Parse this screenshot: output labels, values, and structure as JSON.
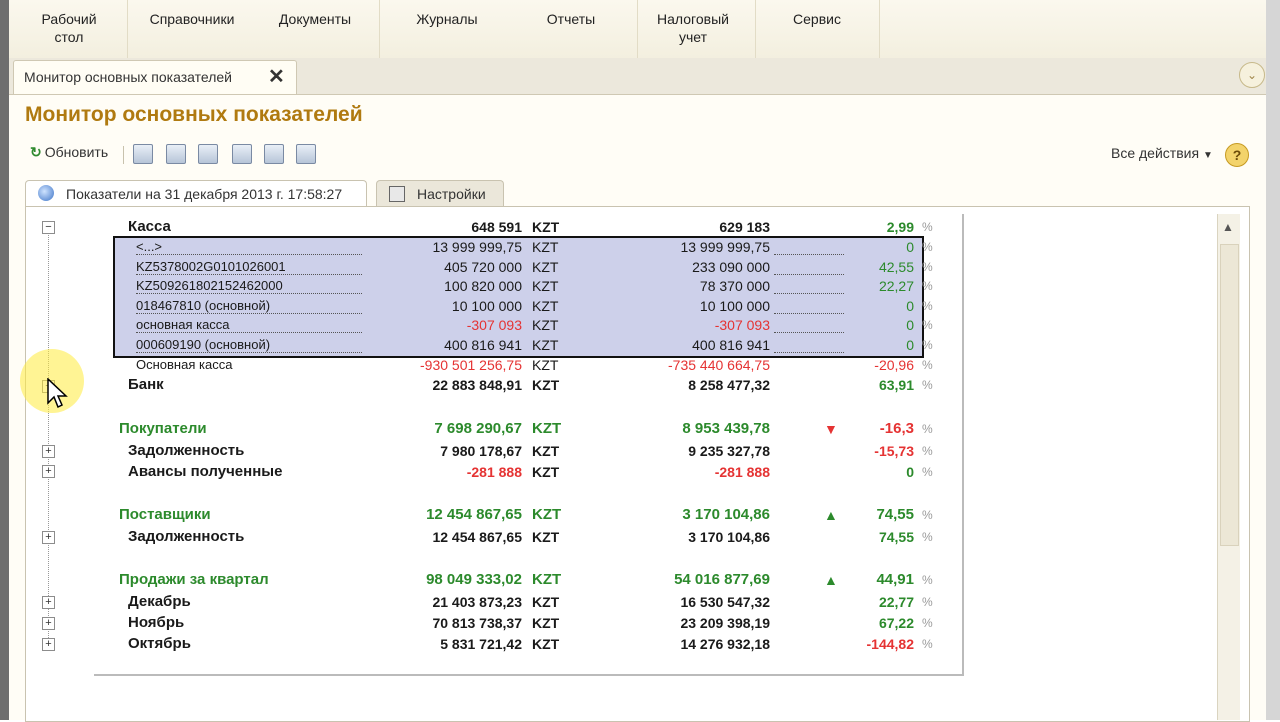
{
  "menu": [
    {
      "label": "Рабочий\nстол"
    },
    {
      "label": "Справочники"
    },
    {
      "label": "Документы"
    },
    {
      "label": "Журналы"
    },
    {
      "label": "Отчеты"
    },
    {
      "label": "Налоговый\nучет"
    },
    {
      "label": "Сервис"
    }
  ],
  "doc_tab": {
    "title": "Монитор основных показателей"
  },
  "page_title": "Монитор основных показателей",
  "toolbar": {
    "refresh_label": "Обновить",
    "all_actions_label": "Все действия",
    "help_label": "?"
  },
  "panel_tabs": [
    {
      "label": "Показатели на 31 декабря 2013 г. 17:58:27"
    },
    {
      "label": "Настройки"
    }
  ],
  "rows": [
    {
      "label": "Касса",
      "v1": "648 591",
      "cur": "KZT",
      "v2": "629 183",
      "pct": "2,99",
      "ps": "%"
    },
    {
      "label": "<...>",
      "v1": "13 999 999,75",
      "cur": "KZT",
      "v2": "13 999 999,75",
      "pct": "0",
      "ps": "%"
    },
    {
      "label": "KZ5378002G0101026001",
      "v1": "405 720 000",
      "cur": "KZT",
      "v2": "233 090 000",
      "pct": "42,55",
      "ps": "%"
    },
    {
      "label": "KZ509261802152462000",
      "v1": "100 820 000",
      "cur": "KZT",
      "v2": "78 370 000",
      "pct": "22,27",
      "ps": "%"
    },
    {
      "label": "018467810 (основной)",
      "v1": "10 100 000",
      "cur": "KZT",
      "v2": "10 100 000",
      "pct": "0",
      "ps": "%"
    },
    {
      "label": "основная касса",
      "v1": "-307 093",
      "cur": "KZT",
      "v2": "-307 093",
      "pct": "0",
      "ps": "%"
    },
    {
      "label": "000609190 (основной)",
      "v1": "400 816 941",
      "cur": "KZT",
      "v2": "400 816 941",
      "pct": "0",
      "ps": "%"
    },
    {
      "label": "Основная касса",
      "v1": "-930 501 256,75",
      "cur": "KZT",
      "v2": "-735 440 664,75",
      "pct": "-20,96",
      "ps": "%"
    },
    {
      "label": "Банк",
      "v1": "22 883 848,91",
      "cur": "KZT",
      "v2": "8 258 477,32",
      "pct": "63,91",
      "ps": "%"
    },
    {
      "label": "Покупатели",
      "v1": "7 698 290,67",
      "cur": "KZT",
      "v2": "8 953 439,78",
      "arrow": "▼",
      "pct": "-16,3",
      "ps": "%"
    },
    {
      "label": "Задолженность",
      "v1": "7 980 178,67",
      "cur": "KZT",
      "v2": "9 235 327,78",
      "pct": "-15,73",
      "ps": "%"
    },
    {
      "label": "Авансы полученные",
      "v1": "-281 888",
      "cur": "KZT",
      "v2": "-281 888",
      "pct": "0",
      "ps": "%"
    },
    {
      "label": "Поставщики",
      "v1": "12 454 867,65",
      "cur": "KZT",
      "v2": "3 170 104,86",
      "arrow": "▲",
      "pct": "74,55",
      "ps": "%"
    },
    {
      "label": "Задолженность",
      "v1": "12 454 867,65",
      "cur": "KZT",
      "v2": "3 170 104,86",
      "pct": "74,55",
      "ps": "%"
    },
    {
      "label": "Продажи за квартал",
      "v1": "98 049 333,02",
      "cur": "KZT",
      "v2": "54 016 877,69",
      "arrow": "▲",
      "pct": "44,91",
      "ps": "%"
    },
    {
      "label": "Декабрь",
      "v1": "21 403 873,23",
      "cur": "KZT",
      "v2": "16 530 547,32",
      "pct": "22,77",
      "ps": "%"
    },
    {
      "label": "Ноябрь",
      "v1": "70 813 738,37",
      "cur": "KZT",
      "v2": "23 209 398,19",
      "pct": "67,22",
      "ps": "%"
    },
    {
      "label": "Октябрь",
      "v1": "5 831 721,42",
      "cur": "KZT",
      "v2": "14 276 932,18",
      "pct": "-144,82",
      "ps": "%"
    }
  ],
  "colors": {
    "accent_title": "#b07a10",
    "positive": "#2c8a2c",
    "negative": "#e53333",
    "selection": "#cdd0ea"
  }
}
